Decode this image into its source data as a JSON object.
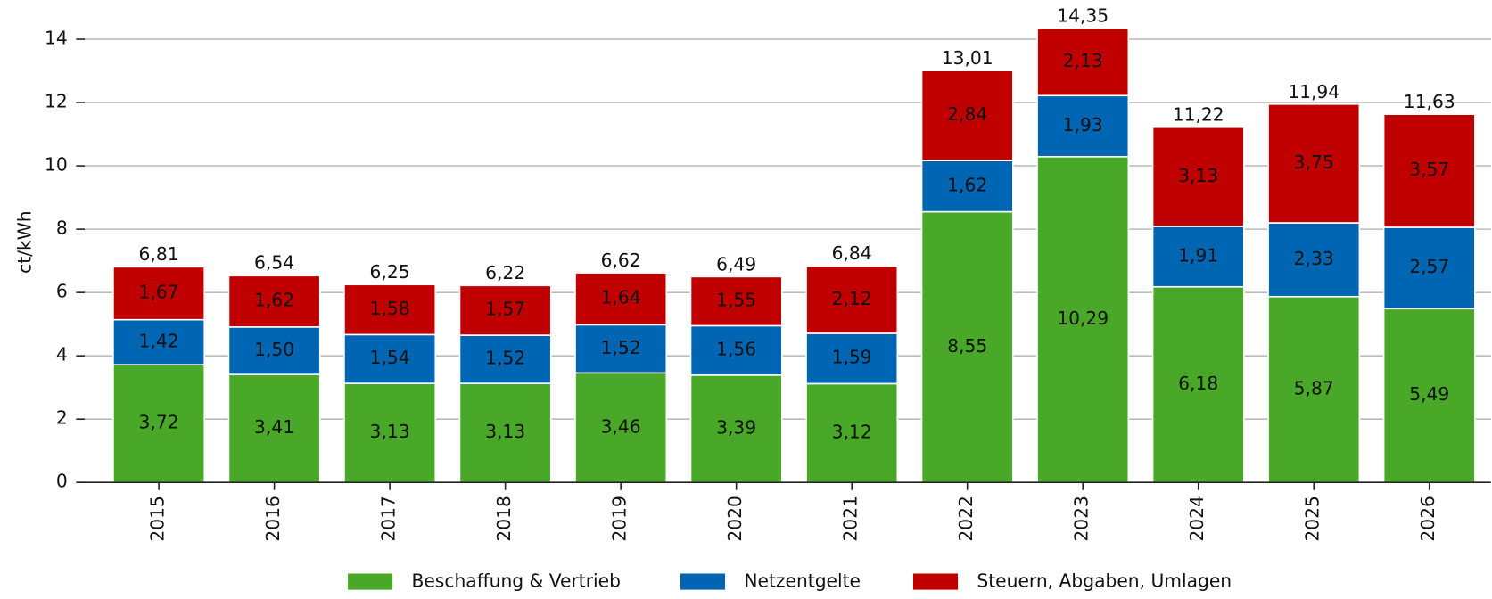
{
  "chart_data": {
    "type": "stacked_bar",
    "y_label": "ct/kWh",
    "categories": [
      "2015",
      "2016",
      "2017",
      "2018",
      "2019",
      "2020",
      "2021",
      "2022",
      "2023",
      "2024",
      "2025",
      "2026"
    ],
    "series": [
      {
        "name": "Beschaffung & Vertrieb",
        "color": "#4aa829",
        "values": [
          3.72,
          3.41,
          3.13,
          3.13,
          3.46,
          3.39,
          3.12,
          8.55,
          10.29,
          6.18,
          5.87,
          5.49
        ],
        "value_labels": [
          "3,72",
          "3,41",
          "3,13",
          "3,13",
          "3,46",
          "3,39",
          "3,12",
          "8,55",
          "10,29",
          "6,18",
          "5,87",
          "5,49"
        ]
      },
      {
        "name": "Netzentgelte",
        "color": "#0066b3",
        "values": [
          1.42,
          1.5,
          1.54,
          1.52,
          1.52,
          1.56,
          1.59,
          1.62,
          1.93,
          1.91,
          2.33,
          2.57
        ],
        "value_labels": [
          "1,42",
          "1,50",
          "1,54",
          "1,52",
          "1,52",
          "1,56",
          "1,59",
          "1,62",
          "1,93",
          "1,91",
          "2,33",
          "2,57"
        ]
      },
      {
        "name": "Steuern, Abgaben, Umlagen",
        "color": "#c00000",
        "values": [
          1.67,
          1.62,
          1.58,
          1.57,
          1.64,
          1.55,
          2.12,
          2.84,
          2.13,
          3.13,
          3.75,
          3.57
        ],
        "value_labels": [
          "1,67",
          "1,62",
          "1,58",
          "1,57",
          "1,64",
          "1,55",
          "2,12",
          "2,84",
          "2,13",
          "3,13",
          "3,75",
          "3,57"
        ]
      }
    ],
    "totals": [
      6.81,
      6.54,
      6.25,
      6.22,
      6.62,
      6.49,
      6.84,
      13.01,
      14.35,
      11.22,
      11.94,
      11.63
    ],
    "total_labels": [
      "6,81",
      "6,54",
      "6,25",
      "6,22",
      "6,62",
      "6,49",
      "6,84",
      "13,01",
      "14,35",
      "11,22",
      "11,94",
      "11,63"
    ],
    "ylim": [
      0,
      15
    ],
    "yticks": [
      0,
      2,
      4,
      6,
      8,
      10,
      12,
      14
    ],
    "grid": true,
    "legend": "bottom"
  }
}
